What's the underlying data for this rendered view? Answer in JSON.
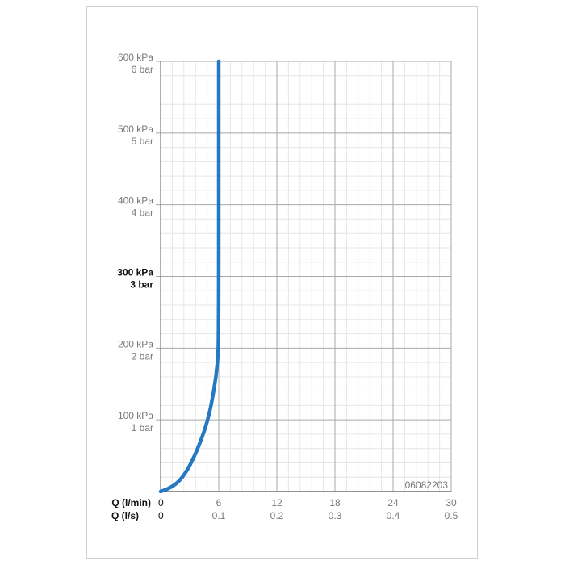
{
  "chart_data": {
    "type": "line",
    "title": "",
    "xlabel_primary": "Q (l/min)",
    "xlabel_secondary": "Q (l/s)",
    "xlim": [
      0,
      30
    ],
    "ylim": [
      0,
      600
    ],
    "x_ticks_primary": [
      "0",
      "6",
      "12",
      "18",
      "24",
      "30"
    ],
    "x_ticks_secondary": [
      "0",
      "0.1",
      "0.2",
      "0.3",
      "0.4",
      "0.5"
    ],
    "y_ticks_kpa": [
      "100 kPa",
      "200 kPa",
      "300 kPa",
      "400 kPa",
      "500 kPa",
      "600 kPa"
    ],
    "y_ticks_bar": [
      "1 bar",
      "2 bar",
      "3 bar",
      "4 bar",
      "5 bar",
      "6 bar"
    ],
    "highlighted_y_tick": "300 kPa",
    "grid": true,
    "code_label": "06082203",
    "series": [
      {
        "color": "#2479c2",
        "x": [
          0,
          1,
          2,
          3,
          4,
          4.9,
          5.5,
          5.9,
          6,
          6
        ],
        "y": [
          0,
          5,
          15,
          35,
          65,
          100,
          140,
          180,
          220,
          600
        ]
      }
    ]
  }
}
